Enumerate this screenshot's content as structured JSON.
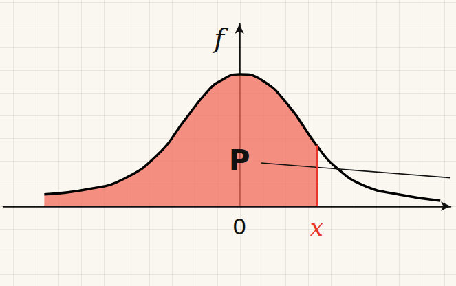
{
  "chart_data": {
    "type": "area",
    "y_label": "f",
    "x": [
      -8.6,
      -6.6,
      -5.1,
      -3.6,
      -2.4,
      -1.45,
      -0.85,
      0,
      0.97,
      2.18,
      3.4,
      4.3,
      5.5,
      7.0,
      8.85
    ],
    "values": [
      0.52,
      0.76,
      1.2,
      2.27,
      3.8,
      5.0,
      5.5,
      5.8,
      5.55,
      4.4,
      2.67,
      1.67,
      0.9,
      0.52,
      0.24
    ],
    "color": "#000000",
    "xlim": [
      -10.4,
      9.3
    ],
    "ylim": [
      0,
      8
    ],
    "xticks": [
      0
    ],
    "yticks": [],
    "tick_labels": "x",
    "area": {
      "to": 3.4,
      "color": "#f26b5b",
      "label": "P",
      "label_x": 0,
      "label_y": 2.0
    },
    "x_marker": {
      "value": 3.4,
      "label": "x",
      "color": "#e8352a"
    }
  }
}
